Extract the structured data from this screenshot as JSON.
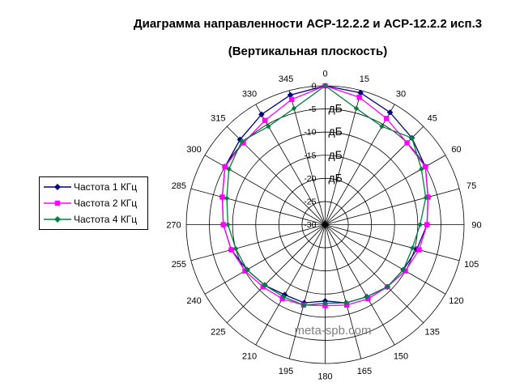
{
  "title": {
    "line1": "Диаграмма направленности АСР-12.2.2 и АСР-12.2.2 исп.3",
    "line2": "(Вертикальная плоскость)"
  },
  "watermark": "meta-spb.com",
  "legend": {
    "items": [
      {
        "label": "Частота 1 КГц"
      },
      {
        "label": "Частота 2 КГц"
      },
      {
        "label": "Частота 4 КГц"
      }
    ]
  },
  "chart_data": {
    "type": "line",
    "polar": true,
    "title": "Диаграмма направленности АСР-12.2.2 и АСР-12.2.2 исп.3 (Вертикальная плоскость)",
    "grid": true,
    "legend_position": "left",
    "angle_ticks_deg": [
      0,
      15,
      30,
      45,
      60,
      75,
      90,
      105,
      120,
      135,
      150,
      165,
      180,
      195,
      210,
      225,
      240,
      255,
      270,
      285,
      300,
      315,
      330,
      345
    ],
    "radial": {
      "unit": "дБ",
      "ticks": [
        0,
        -5,
        -10,
        -15,
        -20,
        -25,
        -30
      ],
      "min": -30,
      "max": 0,
      "unit_rings": [
        -5,
        -10,
        -15,
        -20
      ]
    },
    "series": [
      {
        "name": "Частота 1 КГц",
        "color": "#000080",
        "marker": "diamond",
        "values": [
          0,
          -0.5,
          -2,
          -3.5,
          -5,
          -7,
          -8,
          -9.5,
          -10.5,
          -11,
          -12,
          -12.5,
          -13.5,
          -12.5,
          -12.5,
          -11.5,
          -10.5,
          -9,
          -8,
          -7,
          -5,
          -4,
          -2.5,
          -1
        ]
      },
      {
        "name": "Частота 2 КГц",
        "color": "#FF00FF",
        "marker": "square",
        "values": [
          0,
          -1.5,
          -3.5,
          -5,
          -5,
          -7,
          -8,
          -9,
          -10,
          -11,
          -11.5,
          -12,
          -12.5,
          -12,
          -11.5,
          -11,
          -10,
          -9,
          -8,
          -7,
          -5,
          -5,
          -4,
          -2
        ]
      },
      {
        "name": "Частота 4 КГц",
        "color": "#008040",
        "marker": "diamond",
        "values": [
          0,
          -4,
          -5.5,
          -3.5,
          -6,
          -7.5,
          -9.5,
          -10.5,
          -10.5,
          -11,
          -12,
          -12.5,
          -13,
          -12,
          -12,
          -11.5,
          -10.5,
          -10,
          -9,
          -8,
          -6,
          -4.5,
          -5.5,
          -4
        ]
      }
    ],
    "colors": {
      "text": "#000000",
      "grid": "#000000",
      "watermark": "#808080"
    }
  }
}
